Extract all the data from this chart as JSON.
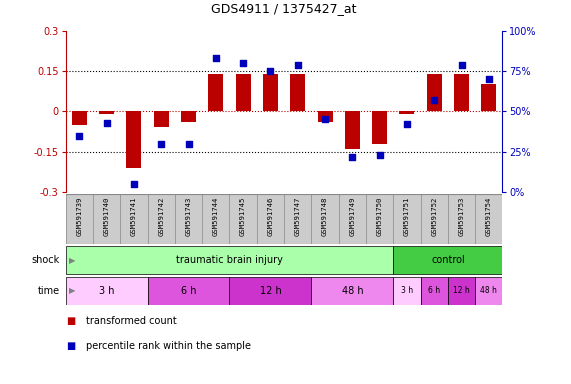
{
  "title": "GDS4911 / 1375427_at",
  "samples": [
    "GSM591739",
    "GSM591740",
    "GSM591741",
    "GSM591742",
    "GSM591743",
    "GSM591744",
    "GSM591745",
    "GSM591746",
    "GSM591747",
    "GSM591748",
    "GSM591749",
    "GSM591750",
    "GSM591751",
    "GSM591752",
    "GSM591753",
    "GSM591754"
  ],
  "red_values": [
    -0.05,
    -0.01,
    -0.21,
    -0.06,
    -0.04,
    0.14,
    0.14,
    0.14,
    0.14,
    -0.04,
    -0.14,
    -0.12,
    -0.01,
    0.14,
    0.14,
    0.1
  ],
  "blue_values": [
    35,
    43,
    5,
    30,
    30,
    83,
    80,
    75,
    79,
    45,
    22,
    23,
    42,
    57,
    79,
    70
  ],
  "ylim_left": [
    -0.3,
    0.3
  ],
  "ylim_right": [
    0,
    100
  ],
  "yticks_left": [
    -0.3,
    -0.15,
    0.0,
    0.15,
    0.3
  ],
  "ytick_labels_left": [
    "-0.3",
    "-0.15",
    "0",
    "0.15",
    "0.3"
  ],
  "yticks_right": [
    0,
    25,
    50,
    75,
    100
  ],
  "ytick_labels_right": [
    "0%",
    "25%",
    "50%",
    "75%",
    "100%"
  ],
  "hlines_dotted": [
    0.15,
    -0.15
  ],
  "hline_red": 0.0,
  "red_color": "#bb0000",
  "blue_color": "#0000bb",
  "bar_width": 0.55,
  "marker_size": 22,
  "shock_groups": [
    {
      "label": "traumatic brain injury",
      "start": 0,
      "end": 12,
      "color": "#aaffaa"
    },
    {
      "label": "control",
      "start": 12,
      "end": 16,
      "color": "#44cc44"
    }
  ],
  "time_groups": [
    {
      "label": "3 h",
      "start": 0,
      "end": 3,
      "color": "#ffccff"
    },
    {
      "label": "6 h",
      "start": 3,
      "end": 6,
      "color": "#dd55dd"
    },
    {
      "label": "12 h",
      "start": 6,
      "end": 9,
      "color": "#cc33cc"
    },
    {
      "label": "48 h",
      "start": 9,
      "end": 12,
      "color": "#ee88ee"
    },
    {
      "label": "3 h",
      "start": 12,
      "end": 13,
      "color": "#ffccff"
    },
    {
      "label": "6 h",
      "start": 13,
      "end": 14,
      "color": "#dd55dd"
    },
    {
      "label": "12 h",
      "start": 14,
      "end": 15,
      "color": "#cc33cc"
    },
    {
      "label": "48 h",
      "start": 15,
      "end": 16,
      "color": "#ee88ee"
    }
  ],
  "legend_items": [
    {
      "label": "transformed count",
      "color": "#bb0000"
    },
    {
      "label": "percentile rank within the sample",
      "color": "#0000bb"
    }
  ],
  "sample_box_color": "#cccccc",
  "sample_box_edge": "#888888"
}
